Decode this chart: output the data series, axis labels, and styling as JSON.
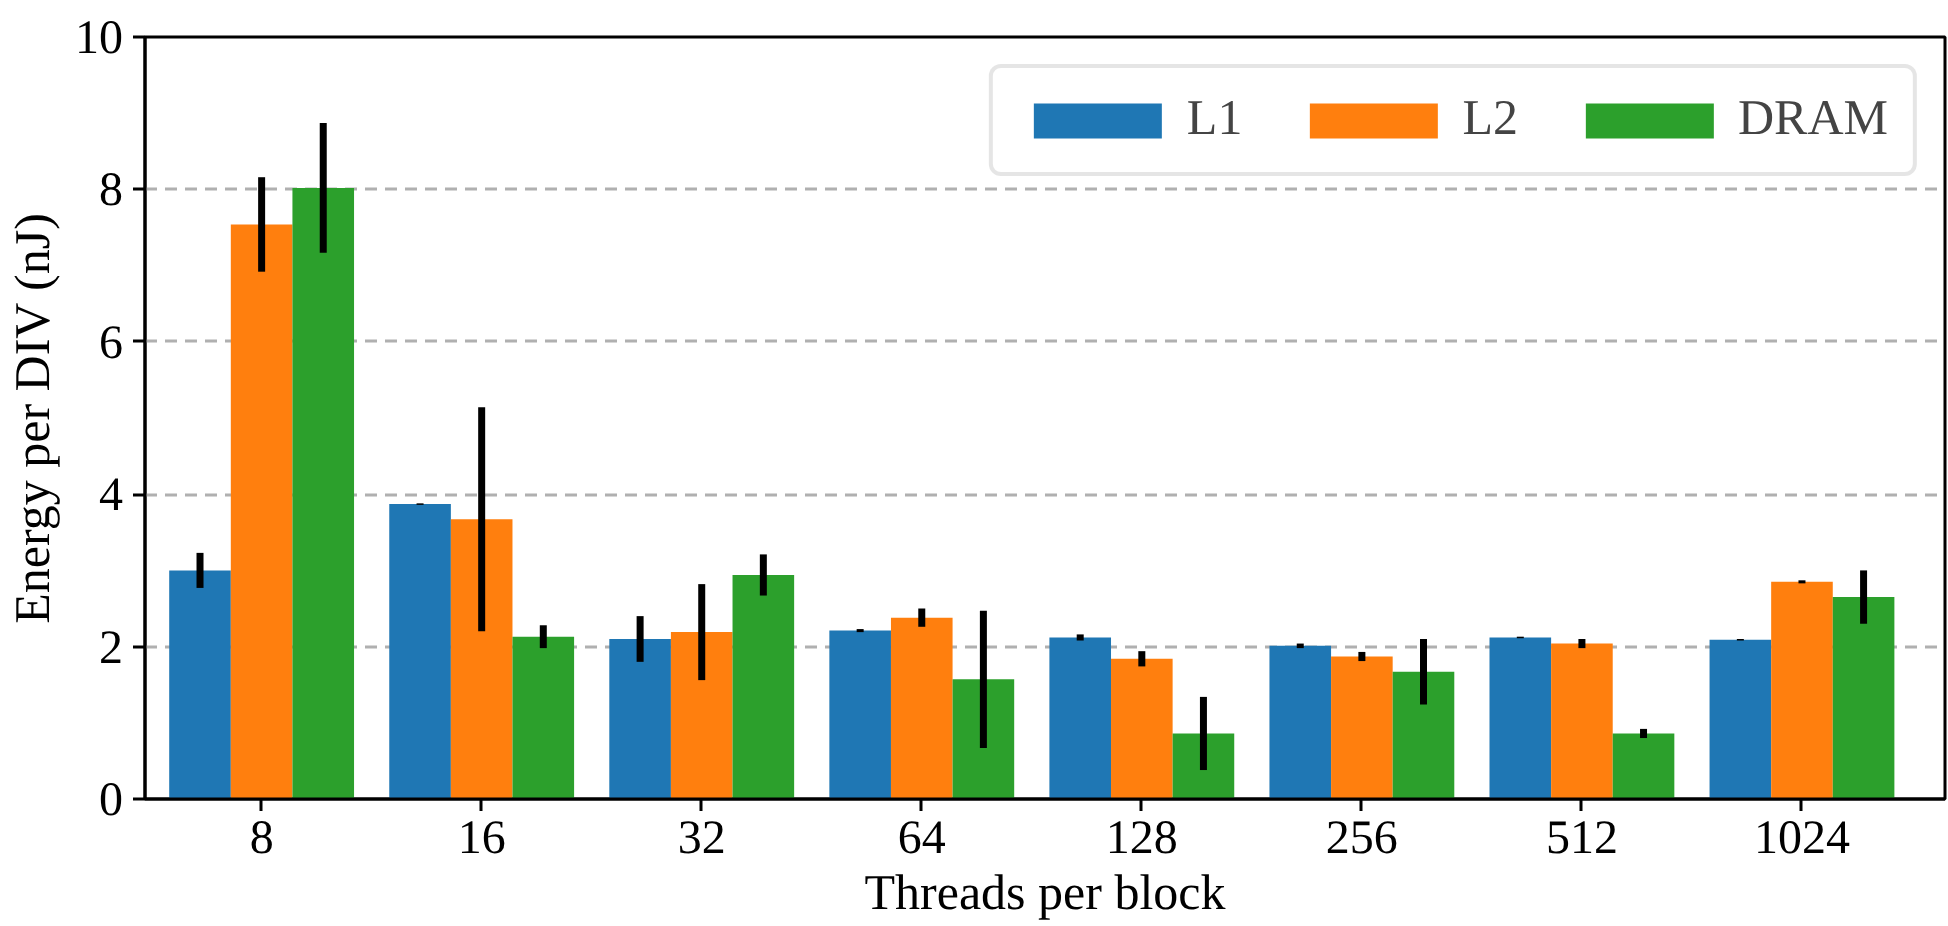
{
  "chart_data": {
    "type": "bar",
    "xlabel": "Threads per block",
    "ylabel": "Energy per DIV (nJ)",
    "categories": [
      "8",
      "16",
      "32",
      "64",
      "128",
      "256",
      "512",
      "1024"
    ],
    "series": [
      {
        "name": "L1",
        "color": "#1f77b4",
        "values": [
          3.0,
          3.87,
          2.1,
          2.21,
          2.12,
          2.01,
          2.12,
          2.09
        ],
        "errors": [
          0.23,
          0.01,
          0.3,
          0.02,
          0.04,
          0.03,
          0.01,
          0.01
        ]
      },
      {
        "name": "L2",
        "color": "#ff7f0e",
        "values": [
          7.54,
          3.67,
          2.19,
          2.38,
          1.84,
          1.87,
          2.04,
          2.85
        ],
        "errors": [
          0.62,
          1.47,
          0.63,
          0.12,
          0.1,
          0.06,
          0.06,
          0.02
        ]
      },
      {
        "name": "DRAM",
        "color": "#2ca02c",
        "values": [
          8.02,
          2.13,
          2.94,
          1.57,
          0.86,
          1.67,
          0.86,
          2.65
        ],
        "errors": [
          0.85,
          0.15,
          0.27,
          0.9,
          0.48,
          0.43,
          0.06,
          0.35
        ]
      }
    ],
    "ylim": [
      0,
      10
    ],
    "yticks": [
      0,
      2,
      4,
      6,
      8,
      10
    ],
    "grid": "y",
    "legend": "top right"
  }
}
